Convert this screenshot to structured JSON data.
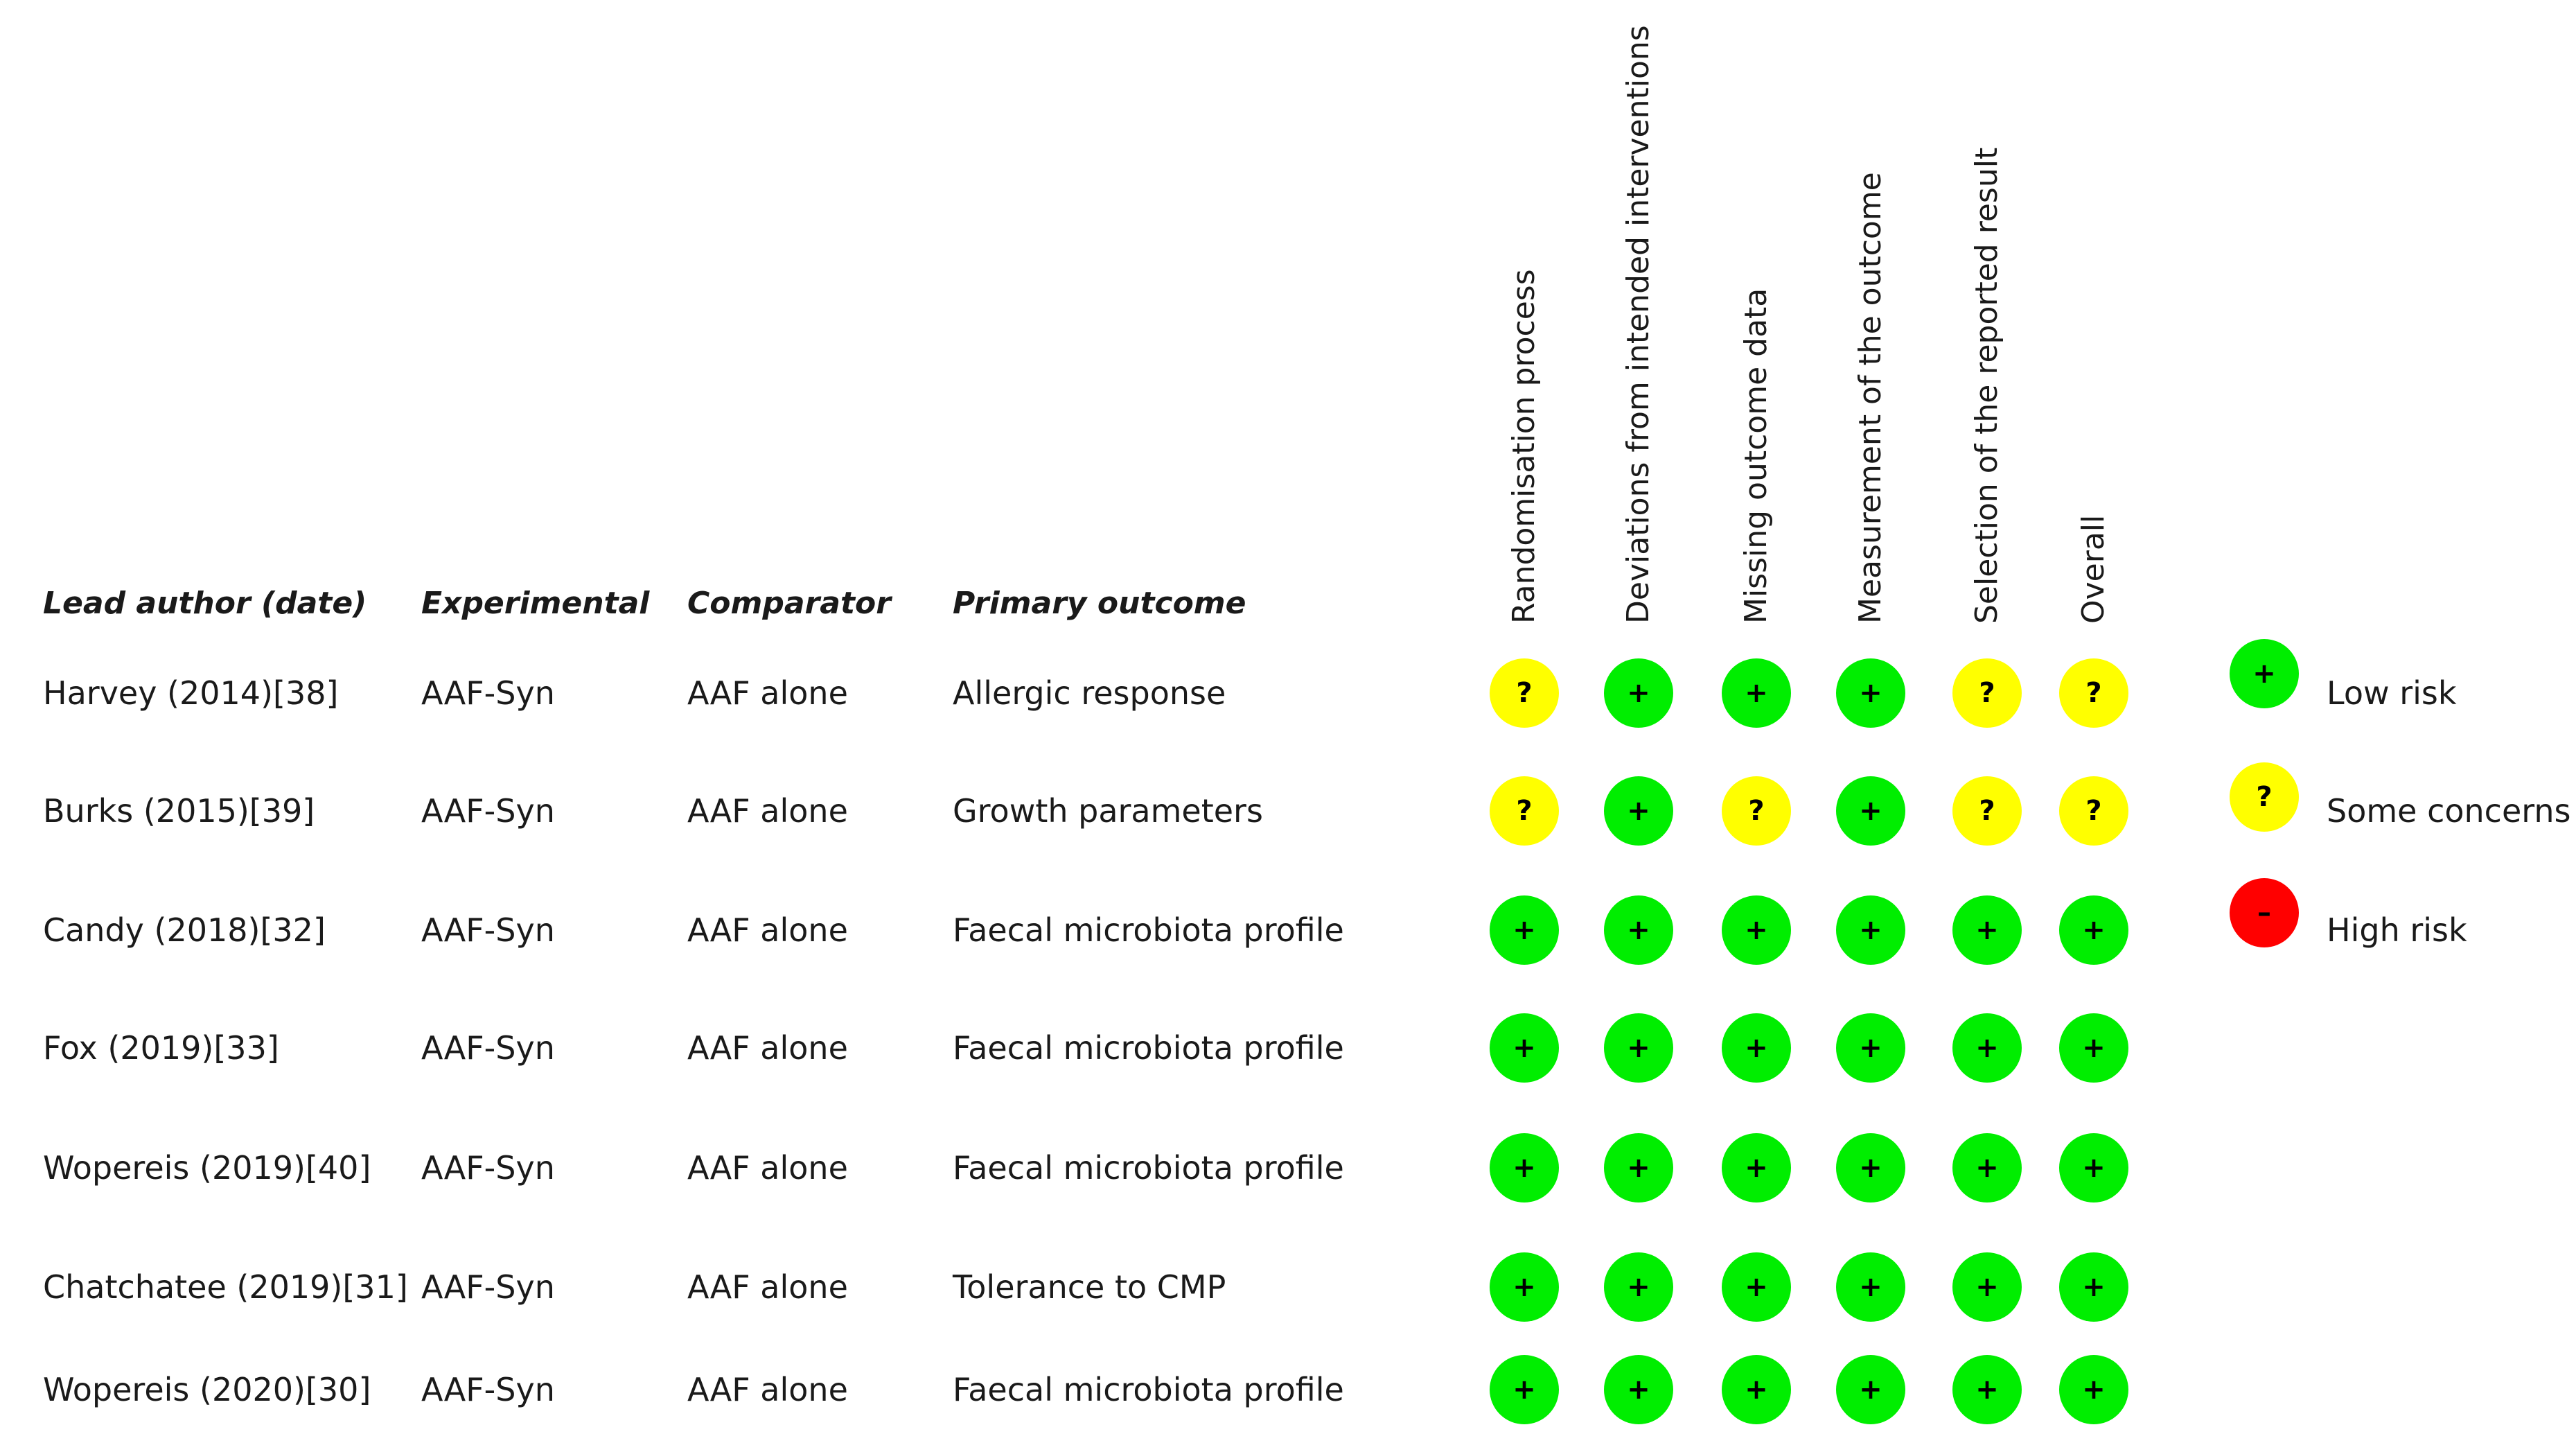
{
  "headers": {
    "author": "Lead author (date)",
    "experimental": "Experimental",
    "comparator": "Comparator",
    "outcome": "Primary outcome"
  },
  "domains": [
    "Randomisation process",
    "Deviations from intended interventions",
    "Missing outcome data",
    "Measurement of the outcome",
    "Selection of the reported result",
    "Overall"
  ],
  "studies": [
    {
      "author": "Harvey (2014)[38]",
      "experimental": "AAF-Syn",
      "comparator": "AAF alone",
      "outcome": "Allergic response",
      "ratings": [
        "some",
        "low",
        "low",
        "low",
        "some",
        "some"
      ]
    },
    {
      "author": "Burks (2015)[39]",
      "experimental": "AAF-Syn",
      "comparator": "AAF alone",
      "outcome": "Growth parameters",
      "ratings": [
        "some",
        "low",
        "some",
        "low",
        "some",
        "some"
      ]
    },
    {
      "author": "Candy (2018)[32]",
      "experimental": "AAF-Syn",
      "comparator": "AAF alone",
      "outcome": "Faecal microbiota profile",
      "ratings": [
        "low",
        "low",
        "low",
        "low",
        "low",
        "low"
      ]
    },
    {
      "author": "Fox (2019)[33]",
      "experimental": "AAF-Syn",
      "comparator": "AAF alone",
      "outcome": "Faecal microbiota profile",
      "ratings": [
        "low",
        "low",
        "low",
        "low",
        "low",
        "low"
      ]
    },
    {
      "author": "Wopereis (2019)[40]",
      "experimental": "AAF-Syn",
      "comparator": "AAF alone",
      "outcome": "Faecal microbiota profile",
      "ratings": [
        "low",
        "low",
        "low",
        "low",
        "low",
        "low"
      ]
    },
    {
      "author": "Chatchatee (2019)[31]",
      "experimental": "AAF-Syn",
      "comparator": "AAF alone",
      "outcome": "Tolerance to CMP",
      "ratings": [
        "low",
        "low",
        "low",
        "low",
        "low",
        "low"
      ]
    },
    {
      "author": "Wopereis (2020)[30]",
      "experimental": "AAF-Syn",
      "comparator": "AAF alone",
      "outcome": "Faecal microbiota profile",
      "ratings": [
        "low",
        "low",
        "low",
        "low",
        "low",
        "low"
      ]
    }
  ],
  "legend": [
    {
      "key": "low",
      "symbol": "+",
      "label": "Low risk",
      "color": "#00ee00"
    },
    {
      "key": "some",
      "symbol": "?",
      "label": "Some concerns",
      "color": "#ffff00"
    },
    {
      "key": "high",
      "symbol": "–",
      "label": "High risk",
      "color": "#ff0000"
    }
  ]
}
